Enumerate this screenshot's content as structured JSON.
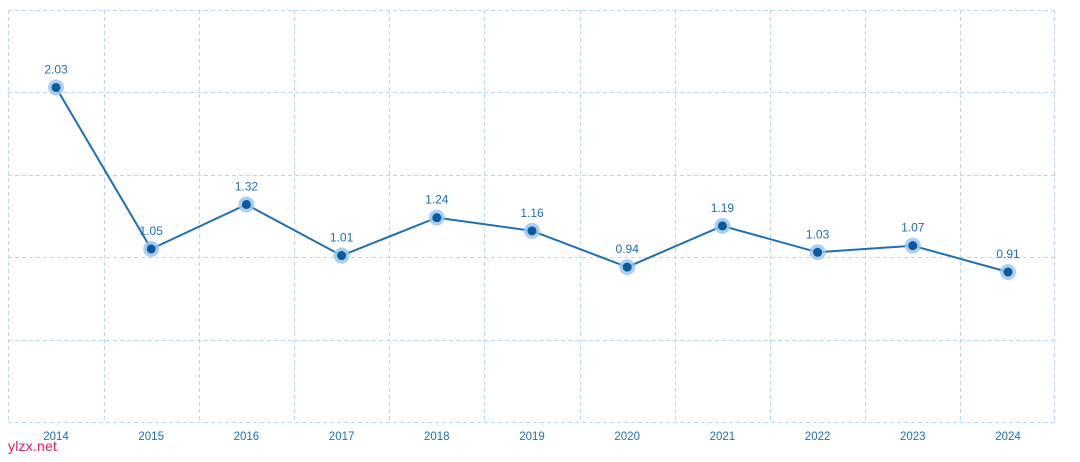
{
  "chart_data": {
    "type": "line",
    "title": "",
    "xlabel": "",
    "ylabel": "",
    "categories": [
      "2014",
      "2015",
      "2016",
      "2017",
      "2018",
      "2019",
      "2020",
      "2021",
      "2022",
      "2023",
      "2024"
    ],
    "series": [
      {
        "values": [
          2.03,
          1.05,
          1.32,
          1.01,
          1.24,
          1.16,
          0.94,
          1.19,
          1.03,
          1.07,
          0.91
        ]
      }
    ],
    "data_labels": [
      "2.03",
      "1.05",
      "1.32",
      "1.01",
      "1.24",
      "1.16",
      "0.94",
      "1.19",
      "1.03",
      "1.07",
      "0.91"
    ],
    "ylim": [
      0,
      2.5
    ],
    "grid": true,
    "legend": "none",
    "colors": {
      "line": "#1f6fb2",
      "point": "#0c5a9e",
      "halo": "#9cc8ec",
      "grid": "#b9d7ee"
    }
  },
  "watermark": {
    "text": "ylzx.net",
    "color": "#e0196b"
  }
}
